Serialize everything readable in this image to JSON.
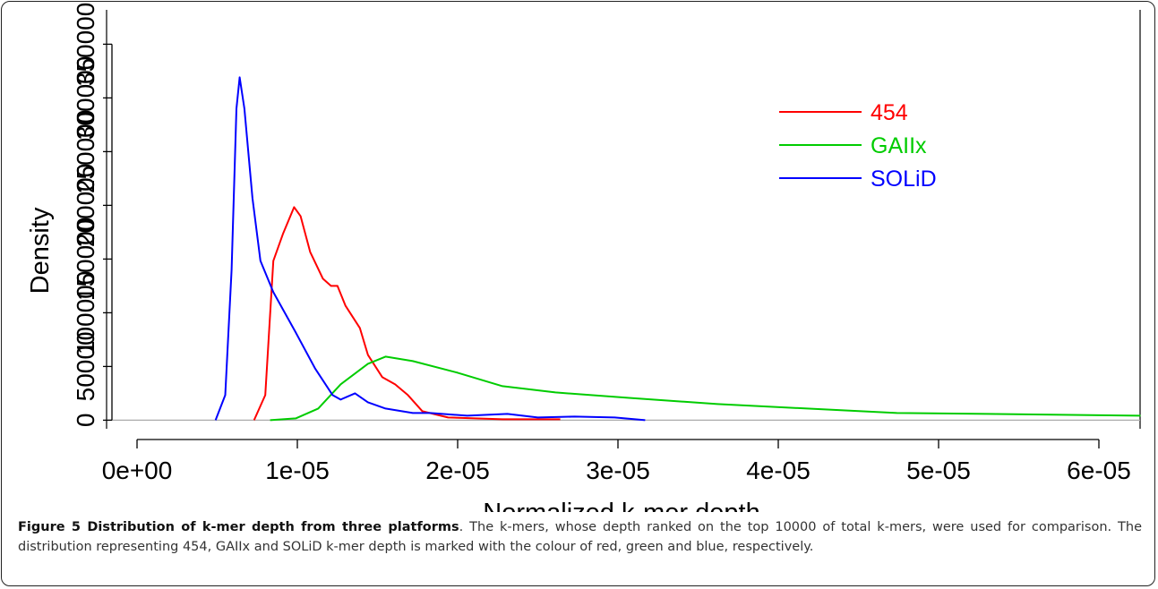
{
  "chart_data": {
    "type": "line",
    "xlabel": "Normalized k-mer depth",
    "ylabel": "Density",
    "xlim": [
      -1.9e-06,
      6.257e-05
    ],
    "ylim": [
      -8000,
      382000
    ],
    "xticks": [
      {
        "value": 0,
        "label": "0e+00"
      },
      {
        "value": 1e-05,
        "label": "1e-05"
      },
      {
        "value": 2e-05,
        "label": "2e-05"
      },
      {
        "value": 3e-05,
        "label": "3e-05"
      },
      {
        "value": 4e-05,
        "label": "4e-05"
      },
      {
        "value": 5e-05,
        "label": "5e-05"
      },
      {
        "value": 6e-05,
        "label": "6e-05"
      }
    ],
    "yticks": [
      0,
      50000,
      100000,
      150000,
      200000,
      250000,
      300000,
      350000
    ],
    "legend": "top-right",
    "series": [
      {
        "name": "454",
        "color": "#ff0000",
        "x": [
          7.3e-06,
          8e-06,
          8.5e-06,
          9.1e-06,
          9.8e-06,
          1.02e-05,
          1.08e-05,
          1.16e-05,
          1.21e-05,
          1.25e-05,
          1.3e-05,
          1.39e-05,
          1.44e-05,
          1.53e-05,
          1.61e-05,
          1.69e-05,
          1.78e-05,
          1.94e-05,
          2.28e-05,
          2.64e-05
        ],
        "values": [
          0,
          23333,
          148333,
          173333,
          198333,
          190000,
          156667,
          131667,
          125000,
          125000,
          106667,
          85833,
          60833,
          40000,
          33333,
          23333,
          8333,
          2500,
          833,
          833
        ]
      },
      {
        "name": "GAIIx",
        "color": "#00cc00",
        "x": [
          8.3e-06,
          9.9e-06,
          1.13e-05,
          1.27e-05,
          1.44e-05,
          1.55e-05,
          1.72e-05,
          2e-05,
          2.28e-05,
          2.61e-05,
          3.06e-05,
          3.62e-05,
          4.18e-05,
          4.74e-05,
          5.3e-05,
          6.26e-05
        ],
        "values": [
          0,
          1667,
          10833,
          33333,
          52500,
          59167,
          55000,
          44167,
          31667,
          25833,
          20833,
          15000,
          10833,
          6667,
          5833,
          4167
        ]
      },
      {
        "name": "SOLiD",
        "color": "#0000ff",
        "x": [
          4.9e-06,
          5.5e-06,
          5.9e-06,
          6.2e-06,
          6.4e-06,
          6.7e-06,
          7.2e-06,
          7.7e-06,
          8.5e-06,
          9.9e-06,
          1.11e-05,
          1.22e-05,
          1.27e-05,
          1.36e-05,
          1.44e-05,
          1.55e-05,
          1.72e-05,
          1.83e-05,
          2.06e-05,
          2.31e-05,
          2.5e-05,
          2.73e-05,
          2.98e-05,
          3.17e-05
        ],
        "values": [
          0,
          23333,
          140000,
          290000,
          319167,
          290000,
          206667,
          148333,
          119167,
          81667,
          48333,
          23333,
          19167,
          25000,
          16667,
          10833,
          6667,
          6667,
          4167,
          5833,
          2500,
          3333,
          2500,
          0
        ]
      }
    ]
  },
  "caption": {
    "title": "Figure 5 Distribution of k-mer depth from three platforms",
    "text": ". The k-mers, whose depth ranked on the top 10000 of total k-mers, were used for comparison. The distribution representing 454, GAIIx and SOLiD k-mer depth is marked with the colour of red, green and blue, respectively."
  }
}
